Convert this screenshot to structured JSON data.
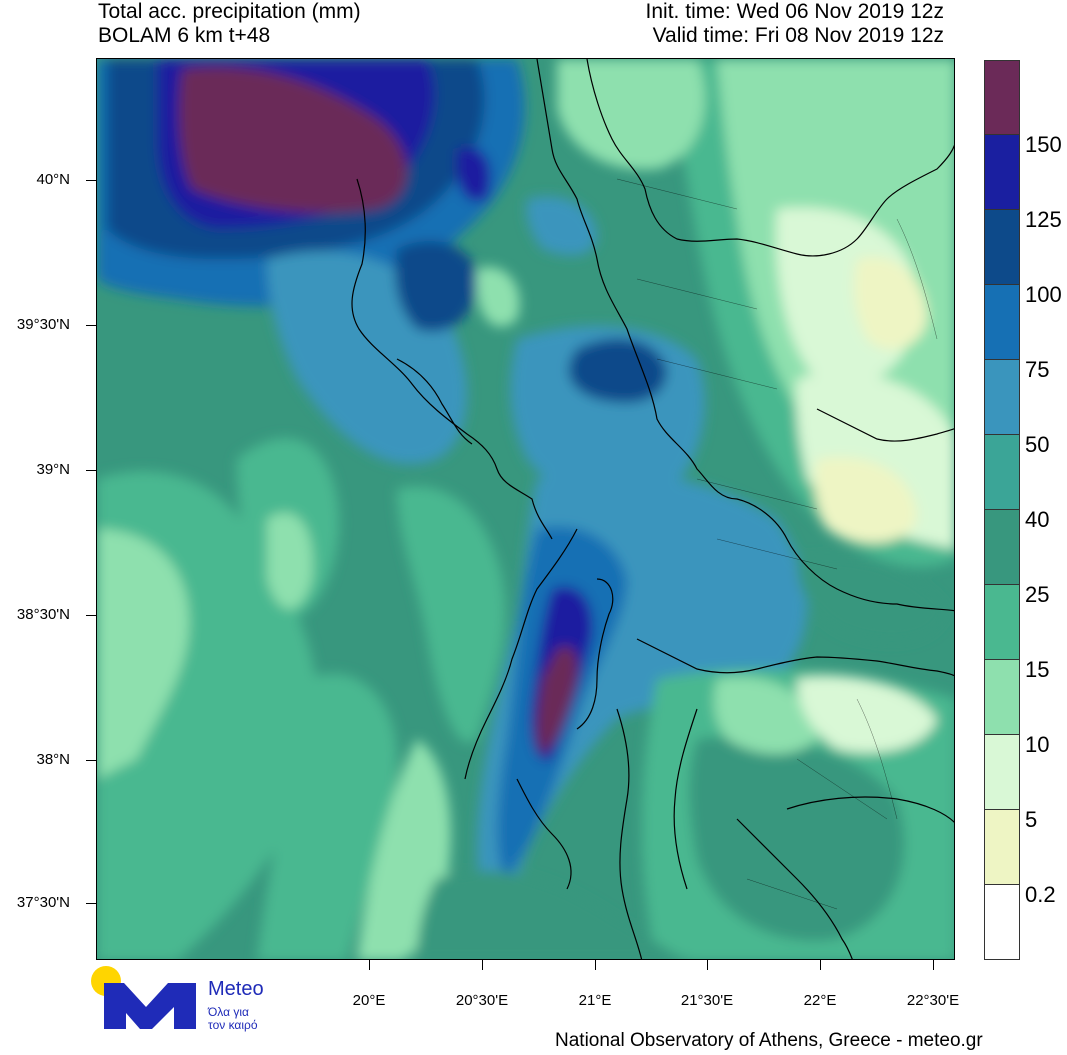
{
  "header": {
    "title": "Total acc. precipitation (mm)",
    "model": "BOLAM 6 km t+48",
    "init_time": "Init. time: Wed 06 Nov 2019 12z",
    "valid_time": "Valid time: Fri 08 Nov 2019 12z"
  },
  "axes": {
    "lat_labels": [
      "40°N",
      "39°30'N",
      "39°N",
      "38°30'N",
      "38°N",
      "37°30'N"
    ],
    "lon_labels": [
      "20°E",
      "20°30'E",
      "21°E",
      "21°30'E",
      "22°E",
      "22°30'E"
    ]
  },
  "legend": {
    "levels": [
      "150",
      "125",
      "100",
      "75",
      "50",
      "40",
      "25",
      "15",
      "10",
      "5",
      "0.2"
    ],
    "colors": [
      "#6b2a58",
      "#1a1fa0",
      "#0d4a8a",
      "#1670b4",
      "#3a95bd",
      "#3ba597",
      "#38977e",
      "#4ab890",
      "#8ee0ae",
      "#d9f8d6",
      "#eef5c4",
      "#ffffff"
    ]
  },
  "branding": {
    "logo_text": "Meteo",
    "logo_sub_1": "Όλα για",
    "logo_sub_2": "τον καιρό",
    "credit": "National Observatory of Athens, Greece - meteo.gr"
  }
}
